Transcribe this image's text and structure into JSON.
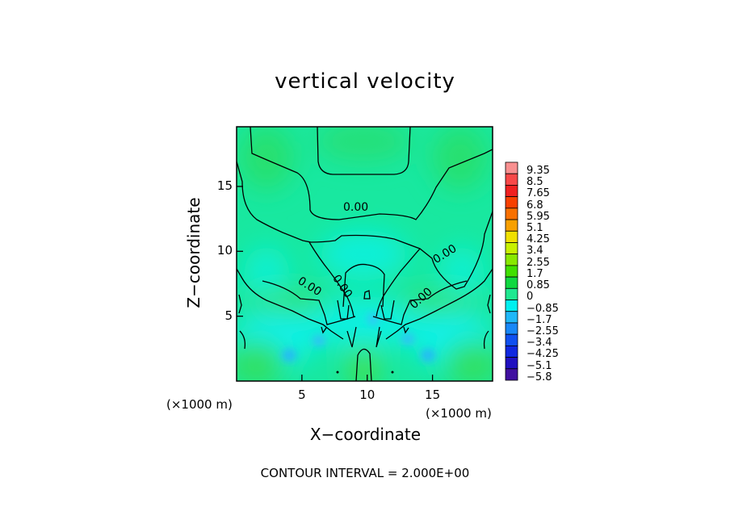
{
  "chart_data": {
    "type": "heatmap",
    "title": "vertical velocity",
    "xlabel": "X−coordinate",
    "ylabel": "Z−coordinate",
    "x_unit": "(×1000 m)",
    "y_unit": "(×1000 m)",
    "xlim": [
      0,
      19.6
    ],
    "ylim": [
      0,
      19.6
    ],
    "x_ticks": [
      5,
      10,
      15
    ],
    "y_ticks": [
      5,
      10,
      15
    ],
    "contour_labels": [
      "0.00",
      "0.00",
      "0.00",
      "0.00",
      "0.00"
    ],
    "colorbar": {
      "levels": [
        "9.35",
        "8.5",
        "7.65",
        "6.8",
        "5.95",
        "5.1",
        "4.25",
        "3.4",
        "2.55",
        "1.7",
        "0.85",
        "0",
        "−0.85",
        "−1.7",
        "−2.55",
        "−3.4",
        "−4.25",
        "−5.1",
        "−5.8"
      ],
      "colors": [
        "#f89090",
        "#f84848",
        "#f02020",
        "#f84000",
        "#f87000",
        "#f8a000",
        "#f0e000",
        "#c8f000",
        "#88e800",
        "#40e000",
        "#10d840",
        "#20e890",
        "#00f0f0",
        "#20b8f8",
        "#1888f8",
        "#1050f0",
        "#1028e0",
        "#2010c0",
        "#4010a0"
      ]
    },
    "footer": "CONTOUR INTERVAL = 2.000E+00"
  }
}
